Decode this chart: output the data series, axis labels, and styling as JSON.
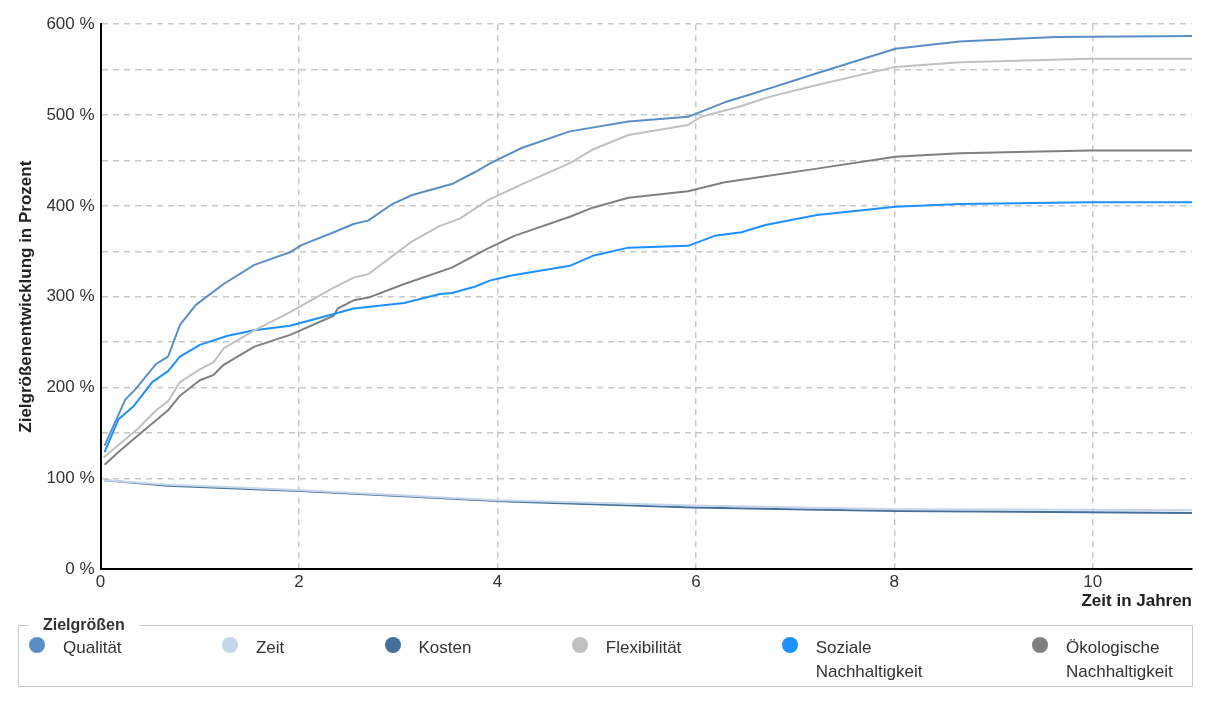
{
  "chart_data": {
    "type": "line",
    "xlabel": "Zeit in Jahren",
    "ylabel": "Zielgrößenentwicklung in Prozent",
    "legend_title": "Zielgrößen",
    "legend": "bottom",
    "grid": true,
    "marker": "none",
    "line_style": "solid",
    "xlim": [
      0,
      11
    ],
    "xticks": [
      0,
      2,
      4,
      6,
      8,
      10
    ],
    "ylim": [
      0,
      600
    ],
    "yticks": [
      {
        "value": 0,
        "label": "0 %"
      },
      {
        "value": 100,
        "label": "100 %"
      },
      {
        "value": 150,
        "label": null
      },
      {
        "value": 200,
        "label": "200 %"
      },
      {
        "value": 250,
        "label": null
      },
      {
        "value": 300,
        "label": "300 %"
      },
      {
        "value": 350,
        "label": null
      },
      {
        "value": 400,
        "label": "400 %"
      },
      {
        "value": 450,
        "label": null
      },
      {
        "value": 500,
        "label": "500 %"
      },
      {
        "value": 550,
        "label": null
      },
      {
        "value": 600,
        "label": "600 %"
      }
    ],
    "series": [
      {
        "name": "Qualität",
        "color": "#5a8fc6",
        "x": [
          0.04,
          0.25,
          0.35,
          0.56,
          0.68,
          0.8,
          0.96,
          1.24,
          1.55,
          1.91,
          2.03,
          2.35,
          2.55,
          2.7,
          2.94,
          3.14,
          3.54,
          3.77,
          3.93,
          4.25,
          4.73,
          5.32,
          5.92,
          6.29,
          6.53,
          7.22,
          8.01,
          8.66,
          9.63,
          11
        ],
        "values": [
          136,
          187,
          198,
          226,
          234,
          269,
          291,
          314,
          335,
          349,
          357,
          371,
          380,
          384,
          402,
          412,
          424,
          437,
          447,
          464,
          482,
          493,
          498,
          514,
          522,
          546,
          573,
          581,
          586,
          587
        ]
      },
      {
        "name": "Zeit",
        "color": "#c5d5ea",
        "x": [
          0.04,
          0.68,
          2.02,
          4,
          5.98,
          8.03,
          11
        ],
        "values": [
          98,
          93,
          87,
          76,
          70,
          66,
          65
        ]
      },
      {
        "name": "Kosten",
        "color": "#456f9c",
        "x": [
          0.04,
          0.68,
          2.02,
          4,
          5.98,
          8.03,
          11
        ],
        "values": [
          98,
          92,
          86,
          75,
          68,
          64,
          62
        ]
      },
      {
        "name": "Flexibilität",
        "color": "#c0c0c0",
        "x": [
          0.03,
          0.37,
          0.56,
          0.68,
          0.8,
          1,
          1.14,
          1.24,
          1.55,
          1.91,
          2.35,
          2.55,
          2.7,
          3.14,
          3.42,
          3.62,
          3.9,
          4.25,
          4.73,
          4.96,
          5.32,
          5.92,
          6.05,
          6.46,
          6.74,
          7.22,
          8.01,
          8.66,
          9.97,
          11
        ],
        "values": [
          123,
          154,
          175,
          185,
          206,
          220,
          228,
          243,
          263,
          283,
          310,
          321,
          325,
          361,
          378,
          386,
          406,
          424,
          447,
          462,
          478,
          489,
          498,
          510,
          520,
          533,
          553,
          558,
          562,
          562
        ]
      },
      {
        "name": "Soziale Nachhaltigkeit",
        "color": "#1e90ff",
        "x": [
          0.04,
          0.18,
          0.33,
          0.52,
          0.68,
          0.8,
          1,
          1.28,
          1.55,
          1.91,
          2.35,
          2.55,
          3.06,
          3.42,
          3.54,
          3.77,
          3.93,
          4.17,
          4.73,
          4.96,
          5.32,
          5.92,
          6.19,
          6.46,
          6.7,
          7.22,
          8.01,
          8.66,
          9.97,
          11
        ],
        "values": [
          129,
          165,
          179,
          206,
          218,
          234,
          247,
          257,
          263,
          268,
          281,
          287,
          293,
          303,
          304,
          311,
          318,
          324,
          334,
          345,
          354,
          356,
          367,
          371,
          379,
          390,
          399,
          402,
          404,
          404
        ]
      },
      {
        "name": "Ökologische Nachhaltigkeit",
        "color": "#808080",
        "x": [
          0.04,
          0.18,
          0.34,
          0.68,
          0.8,
          1,
          1.14,
          1.24,
          1.55,
          1.91,
          2.35,
          2.39,
          2.55,
          2.7,
          3.06,
          3.54,
          3.9,
          4.17,
          4.73,
          4.96,
          5.32,
          5.92,
          6.29,
          7.22,
          8.01,
          8.66,
          9.97,
          11
        ],
        "values": [
          115,
          129,
          144,
          175,
          191,
          208,
          214,
          225,
          245,
          258,
          279,
          287,
          296,
          299,
          314,
          332,
          353,
          367,
          388,
          398,
          409,
          416,
          426,
          441,
          454,
          458,
          461,
          461
        ]
      }
    ]
  }
}
